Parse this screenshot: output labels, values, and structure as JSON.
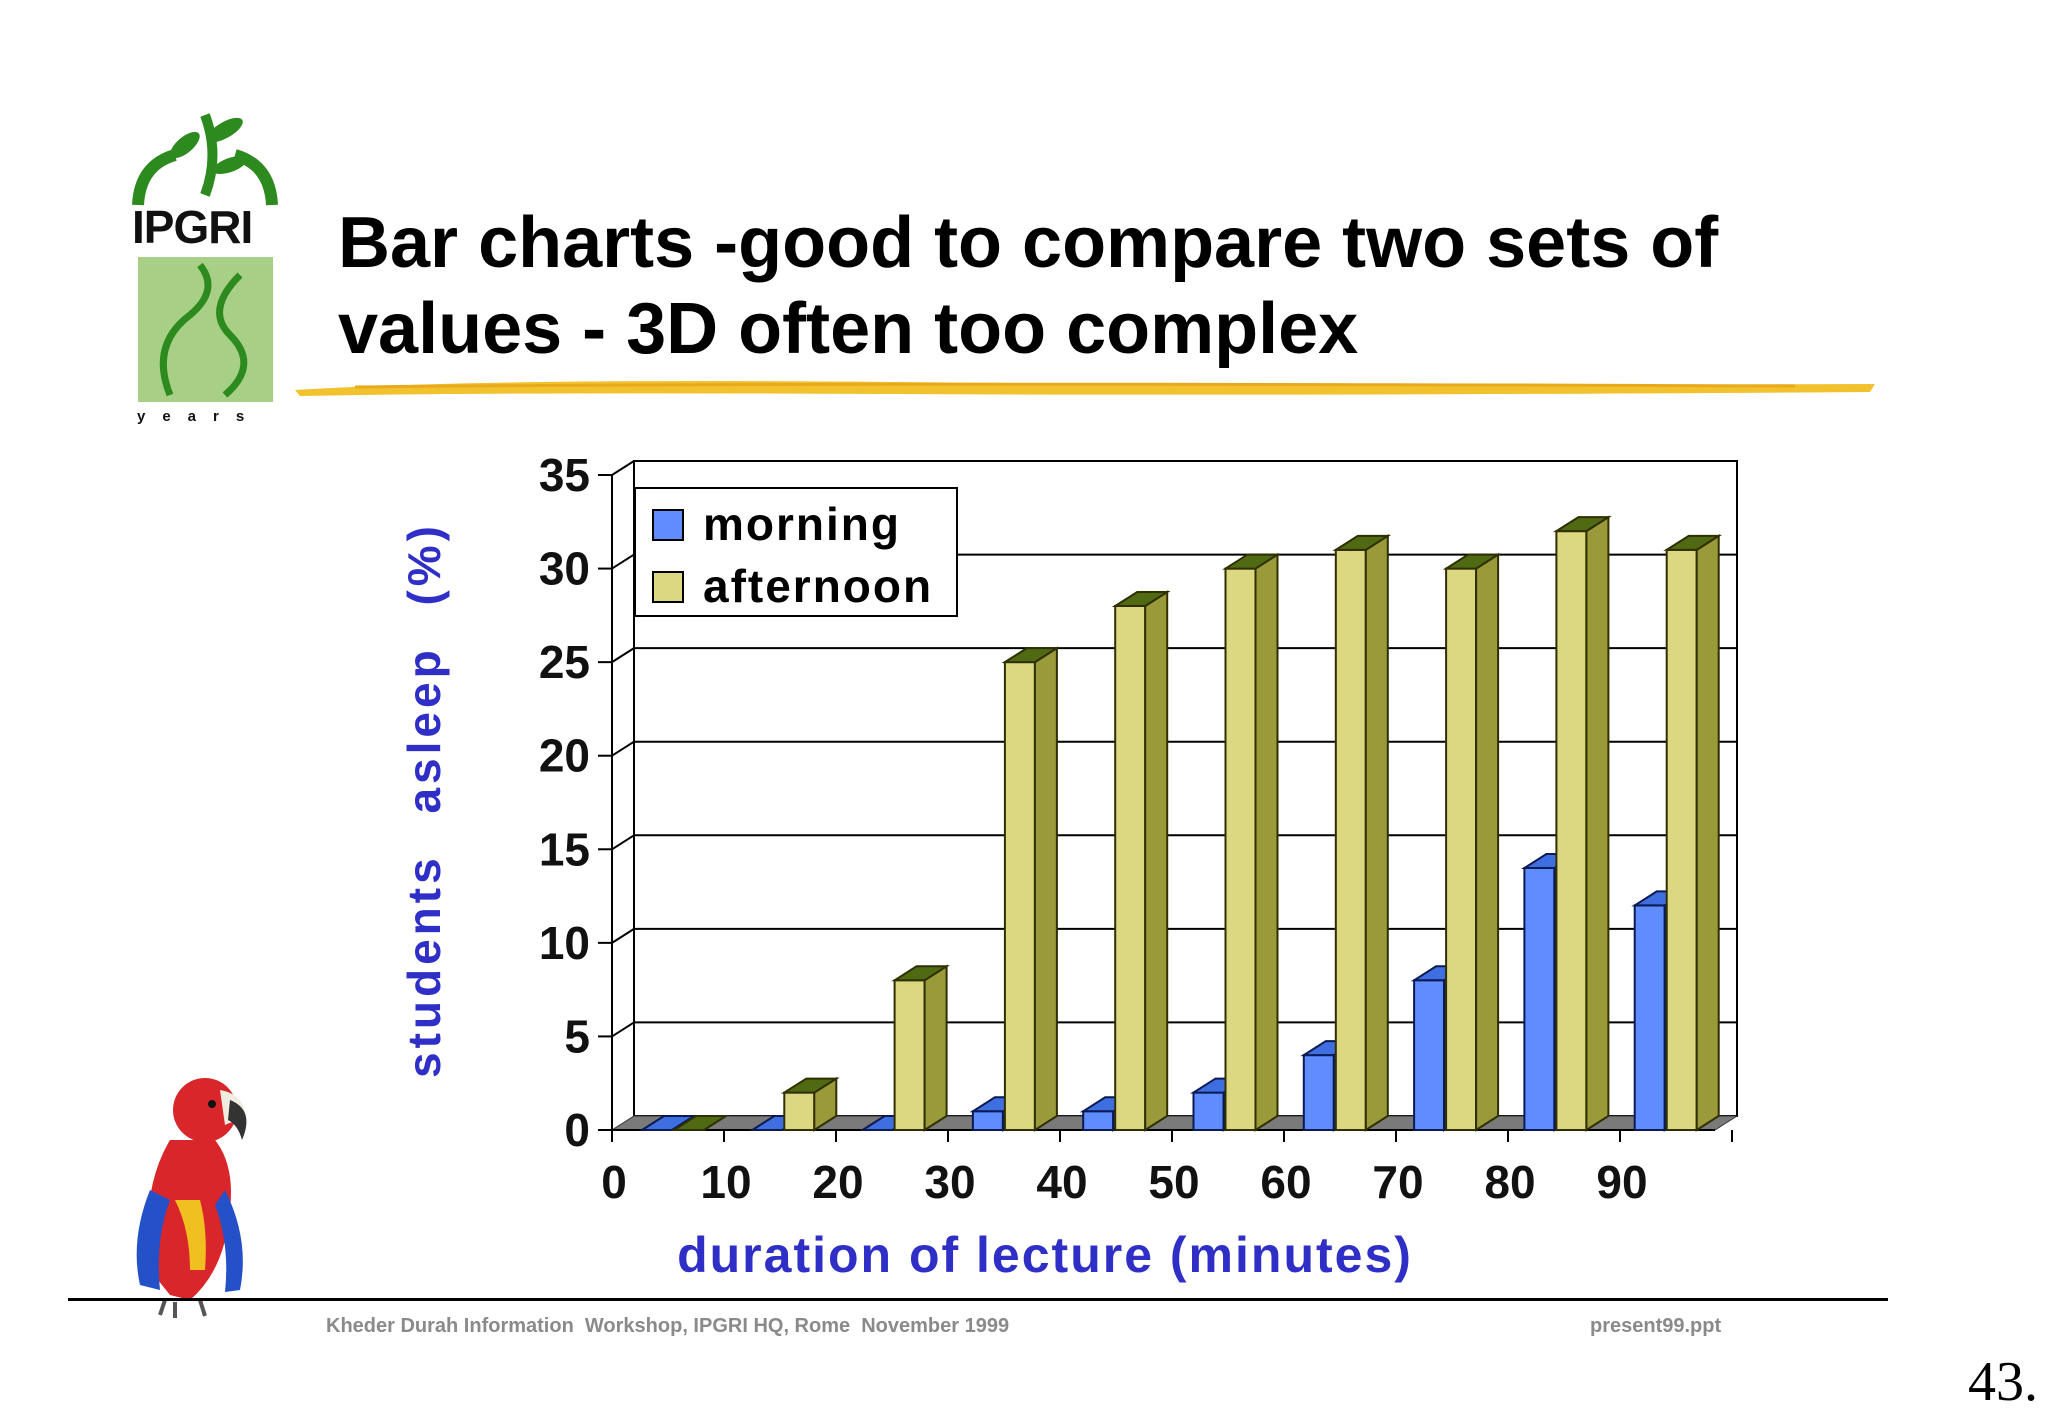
{
  "logo": {
    "text": "IPGRI",
    "years": "years"
  },
  "slide": {
    "title": "Bar charts -good to compare two sets of values - 3D often too complex"
  },
  "footer": {
    "left": "Kheder Durah Information  Workshop, IPGRI HQ, Rome  November 1999",
    "right": "present99.ppt"
  },
  "page_number": "43.",
  "colors": {
    "morning": "#5f8dff",
    "afternoon": "#dcd882",
    "axis_label": "#2f2fc8",
    "brush": "#f2c22e"
  },
  "chart_data": {
    "type": "bar",
    "categories": [
      "0",
      "10",
      "20",
      "30",
      "40",
      "50",
      "60",
      "70",
      "80",
      "90"
    ],
    "series": [
      {
        "name": "morning",
        "values": [
          0,
          0,
          0,
          1,
          1,
          2,
          4,
          8,
          14,
          12
        ]
      },
      {
        "name": "afternoon",
        "values": [
          0,
          2,
          8,
          25,
          28,
          30,
          31,
          30,
          32,
          31
        ]
      }
    ],
    "xlabel": "duration of lecture (minutes)",
    "ylabel": "students asleep (%)",
    "ylim": [
      0,
      35
    ],
    "yticks": [
      "0",
      "5",
      "10",
      "15",
      "20",
      "25",
      "30",
      "35"
    ],
    "grid": true,
    "legend": "top-left",
    "style": "3d"
  }
}
